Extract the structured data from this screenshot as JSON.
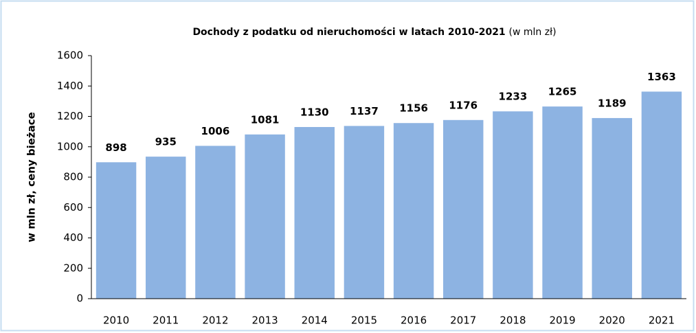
{
  "chart_data": {
    "type": "bar",
    "title": "Dochody z podatku od nieruchomości w latach 2010-2021",
    "unit": "(w mln zł)",
    "y_label": "w mln zł, ceny bieżace",
    "categories": [
      "2010",
      "2011",
      "2012",
      "2013",
      "2014",
      "2015",
      "2016",
      "2017",
      "2018",
      "2019",
      "2020",
      "2021"
    ],
    "values": [
      898,
      935,
      1006,
      1081,
      1130,
      1137,
      1156,
      1176,
      1233,
      1265,
      1189,
      1363
    ],
    "color": "#8db3e2",
    "ylim": [
      0,
      1600
    ],
    "yticks": [
      0,
      200,
      400,
      600,
      800,
      1000,
      1200,
      1400,
      1600
    ],
    "grid": false
  }
}
